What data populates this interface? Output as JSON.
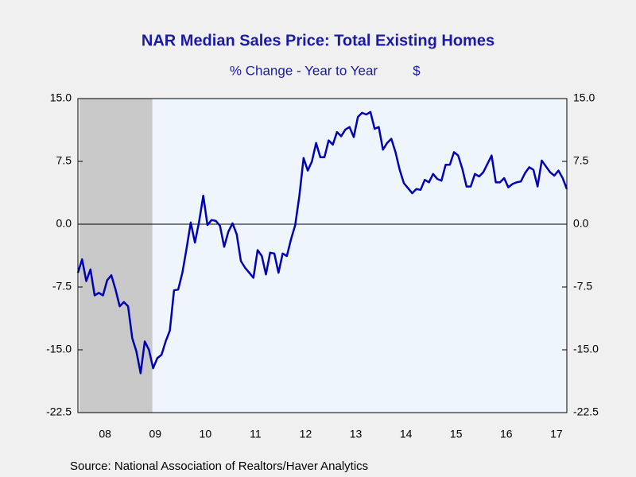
{
  "chart_data": {
    "type": "line",
    "title": "NAR Median Sales Price: Total Existing Homes",
    "subtitle": "% Change - Year to Year",
    "units": "$",
    "source": "Source:  National Association of Realtors/Haver Analytics",
    "categories": [
      null,
      null,
      null,
      null,
      null,
      null,
      "08",
      null,
      null,
      null,
      null,
      null,
      null,
      null,
      null,
      null,
      null,
      null,
      "09",
      null,
      null,
      null,
      null,
      null,
      null,
      null,
      null,
      null,
      null,
      null,
      "10",
      null,
      null,
      null,
      null,
      null,
      null,
      null,
      null,
      null,
      null,
      null,
      "11",
      null,
      null,
      null,
      null,
      null,
      null,
      null,
      null,
      null,
      null,
      null,
      "12",
      null,
      null,
      null,
      null,
      null,
      null,
      null,
      null,
      null,
      null,
      null,
      "13",
      null,
      null,
      null,
      null,
      null,
      null,
      null,
      null,
      null,
      null,
      null,
      "14",
      null,
      null,
      null,
      null,
      null,
      null,
      null,
      null,
      null,
      null,
      null,
      "15",
      null,
      null,
      null,
      null,
      null,
      null,
      null,
      null,
      null,
      null,
      null,
      "16",
      null,
      null,
      null,
      null,
      null,
      null,
      null,
      null,
      null,
      null,
      null,
      "17",
      null,
      null,
      null
    ],
    "series": [
      {
        "name": "NAR Median Sales Price: Total Existing Homes",
        "color": "#0000b4",
        "values": [
          -5.8,
          -4.2,
          -6.8,
          -5.4,
          -8.5,
          -8.2,
          -8.5,
          -6.7,
          -6.1,
          -7.8,
          -9.8,
          -9.3,
          -9.8,
          -13.6,
          -15.2,
          -17.8,
          -14.0,
          -15.0,
          -17.2,
          -16.0,
          -15.6,
          -14.0,
          -12.7,
          -7.9,
          -7.8,
          -5.8,
          -2.9,
          0.2,
          -2.2,
          0.3,
          3.4,
          -0.1,
          0.5,
          0.4,
          -0.2,
          -2.7,
          -0.9,
          0.1,
          -1.2,
          -4.4,
          -5.2,
          -5.8,
          -6.4,
          -3.1,
          -3.8,
          -6.0,
          -3.4,
          -3.5,
          -5.8,
          -3.5,
          -3.8,
          -1.8,
          -0.1,
          3.4,
          7.9,
          6.4,
          7.5,
          9.7,
          8.0,
          8.0,
          10.0,
          9.5,
          11.0,
          10.5,
          11.3,
          11.6,
          10.4,
          12.8,
          13.3,
          13.1,
          13.4,
          11.4,
          11.6,
          8.9,
          9.7,
          10.2,
          8.6,
          6.5,
          4.9,
          4.3,
          3.7,
          4.2,
          4.1,
          5.3,
          5.0,
          6.0,
          5.4,
          5.2,
          7.1,
          7.1,
          8.6,
          8.2,
          6.6,
          4.5,
          4.5,
          6.0,
          5.7,
          6.2,
          7.2,
          8.2,
          5.0,
          5.0,
          5.5,
          4.4,
          4.8,
          5.0,
          5.1,
          6.1,
          6.8,
          6.5,
          4.5,
          7.6,
          6.9,
          6.2,
          5.8,
          6.4,
          5.5,
          4.2
        ]
      }
    ],
    "recession": {
      "start": 0,
      "end": 18,
      "color": "#c8c8c8"
    },
    "ylim": [
      -22.5,
      15
    ],
    "yticks": [
      {
        "value": -22.5,
        "label": "-22.5"
      },
      {
        "value": -15,
        "label": "-15.0"
      },
      {
        "value": -7.5,
        "label": "-7.5"
      },
      {
        "value": 0,
        "label": "0.0"
      },
      {
        "value": 7.5,
        "label": "7.5"
      },
      {
        "value": 15,
        "label": "15.0"
      }
    ],
    "y2lim": [
      -22.5,
      15
    ],
    "y2ticks": [
      {
        "value": -22.5,
        "label": "-22.5"
      },
      {
        "value": -15,
        "label": "-15.0"
      },
      {
        "value": -7.5,
        "label": "-7.5"
      },
      {
        "value": 0,
        "label": "0.0"
      },
      {
        "value": 7.5,
        "label": "7.5"
      },
      {
        "value": 15,
        "label": "15.0"
      }
    ]
  }
}
